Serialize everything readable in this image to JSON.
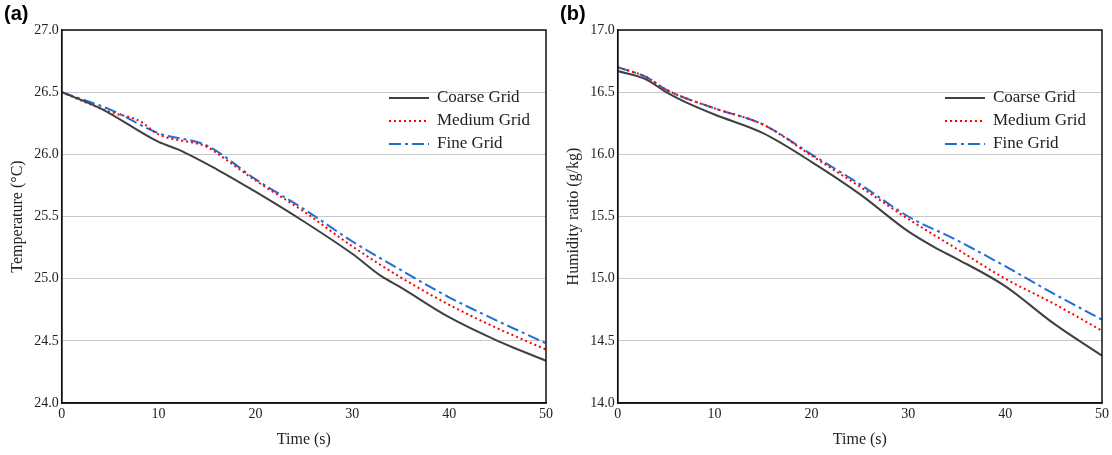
{
  "chart_data": [
    {
      "type": "line",
      "title": "(a)",
      "xlabel": "Time (s)",
      "ylabel": "Temperature (°C)",
      "xlim": [
        0,
        50
      ],
      "xticks": [
        0,
        10,
        20,
        30,
        40,
        50
      ],
      "ylim": [
        24.0,
        27.0
      ],
      "yticks": [
        {
          "value": 24,
          "label": "24.0"
        },
        {
          "value": 24.5,
          "label": "24.5"
        },
        {
          "value": 25,
          "label": "25.0"
        },
        {
          "value": 25.5,
          "label": "25.5"
        },
        {
          "value": 26,
          "label": "26.0"
        },
        {
          "value": 26.5,
          "label": "26.5"
        },
        {
          "value": 27,
          "label": "27.0"
        }
      ],
      "grid": "y",
      "legend": "top right",
      "marker": "none",
      "series": [
        {
          "name": "Coarse Grid",
          "color": "#404040",
          "line_style": "solid",
          "x": [
            0,
            4,
            10,
            12,
            16,
            20,
            25,
            30,
            33,
            35,
            40,
            45,
            50
          ],
          "values": [
            26.5,
            26.37,
            26.1,
            26.04,
            25.88,
            25.7,
            25.46,
            25.2,
            25.02,
            24.93,
            24.69,
            24.5,
            24.34
          ]
        },
        {
          "name": "Medium Grid",
          "color": "#ff0000",
          "line_style": "dotted",
          "x": [
            0,
            5,
            8,
            10,
            15,
            16,
            20,
            25,
            30,
            35,
            40,
            45,
            50
          ],
          "values": [
            26.5,
            26.34,
            26.27,
            26.16,
            26.06,
            26.01,
            25.79,
            25.54,
            25.26,
            25.01,
            24.79,
            24.6,
            24.43
          ]
        },
        {
          "name": "Fine Grid",
          "color": "#1f6fd6",
          "line_style": "dashdot",
          "x": [
            0,
            5,
            10,
            15,
            20,
            25,
            30,
            35,
            40,
            45,
            50
          ],
          "values": [
            26.5,
            26.36,
            26.17,
            26.07,
            25.8,
            25.56,
            25.3,
            25.07,
            24.85,
            24.66,
            24.48
          ]
        }
      ]
    },
    {
      "type": "line",
      "title": "(b)",
      "xlabel": "Time (s)",
      "ylabel": "Humidity ratio (g/kg)",
      "xlim": [
        0,
        50
      ],
      "xticks": [
        0,
        10,
        20,
        30,
        40,
        50
      ],
      "ylim": [
        14.0,
        17.0
      ],
      "yticks": [
        {
          "value": 14,
          "label": "14.0"
        },
        {
          "value": 14.5,
          "label": "14.5"
        },
        {
          "value": 15,
          "label": "15.0"
        },
        {
          "value": 15.5,
          "label": "15.5"
        },
        {
          "value": 16,
          "label": "16.0"
        },
        {
          "value": 16.5,
          "label": "16.5"
        },
        {
          "value": 17,
          "label": "17.0"
        }
      ],
      "grid": "y",
      "legend": "top right",
      "marker": "none",
      "series": [
        {
          "name": "Coarse Grid",
          "color": "#404040",
          "line_style": "solid",
          "x": [
            0,
            3,
            5,
            7,
            10,
            15,
            20,
            25,
            30,
            33,
            35,
            40,
            45,
            50
          ],
          "values": [
            16.67,
            16.6,
            16.5,
            16.42,
            16.32,
            16.17,
            15.94,
            15.68,
            15.38,
            15.24,
            15.16,
            14.94,
            14.64,
            14.38
          ]
        },
        {
          "name": "Medium Grid",
          "color": "#ff0000",
          "line_style": "dotted",
          "x": [
            0,
            3,
            5,
            10,
            15,
            20,
            25,
            30,
            35,
            40,
            45,
            50
          ],
          "values": [
            16.7,
            16.62,
            16.52,
            16.37,
            16.24,
            15.99,
            15.74,
            15.48,
            15.24,
            15.0,
            14.8,
            14.58
          ]
        },
        {
          "name": "Fine Grid",
          "color": "#1f6fd6",
          "line_style": "dashdot",
          "x": [
            0,
            3,
            5,
            10,
            15,
            20,
            25,
            30,
            35,
            40,
            45,
            50
          ],
          "values": [
            16.7,
            16.62,
            16.52,
            16.37,
            16.24,
            16.0,
            15.76,
            15.5,
            15.31,
            15.1,
            14.88,
            14.67
          ]
        }
      ]
    }
  ]
}
